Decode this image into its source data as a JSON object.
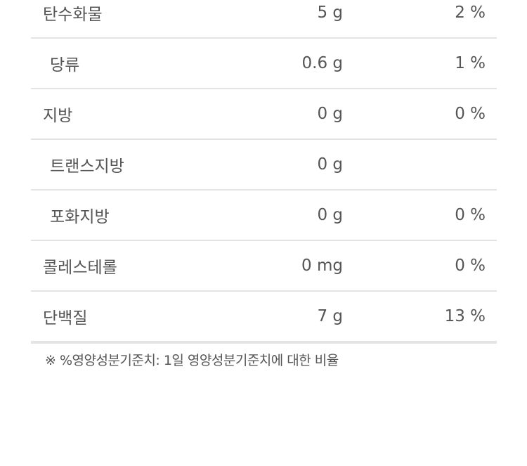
{
  "rows": [
    {
      "name": "탄수화물",
      "amount": "5 g",
      "percent": "2 %",
      "sub": false
    },
    {
      "name": "당류",
      "amount": "0.6 g",
      "percent": "1 %",
      "sub": true
    },
    {
      "name": "지방",
      "amount": "0 g",
      "percent": "0 %",
      "sub": false
    },
    {
      "name": "트랜스지방",
      "amount": "0 g",
      "percent": "",
      "sub": true
    },
    {
      "name": "포화지방",
      "amount": "0 g",
      "percent": "0 %",
      "sub": true
    },
    {
      "name": "콜레스테롤",
      "amount": "0 mg",
      "percent": "0 %",
      "sub": false
    },
    {
      "name": "단백질",
      "amount": "7 g",
      "percent": "13 %",
      "sub": false
    }
  ],
  "footnote": "※ %영양성분기준치: 1일 영양성분기준치에 대한 비율"
}
